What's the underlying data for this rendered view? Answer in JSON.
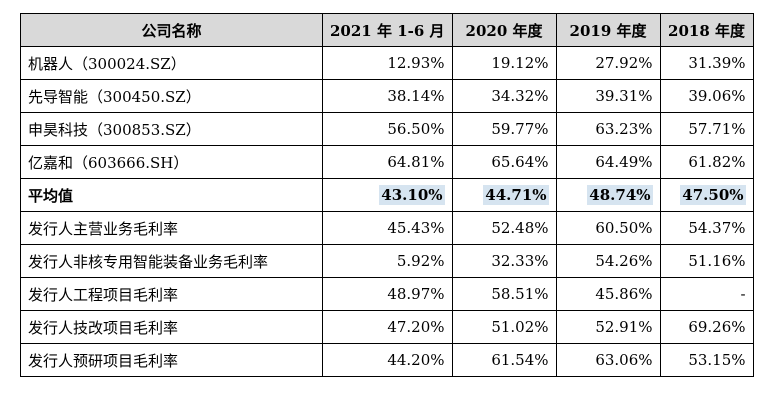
{
  "table": {
    "headers": [
      "公司名称",
      "2021 年 1-6 月",
      "2020 年度",
      "2019 年度",
      "2018 年度"
    ],
    "rows": [
      {
        "name": "机器人（300024.SZ）",
        "values": [
          "12.93%",
          "19.12%",
          "27.92%",
          "31.39%"
        ]
      },
      {
        "name": "先导智能（300450.SZ）",
        "values": [
          "38.14%",
          "34.32%",
          "39.31%",
          "39.06%"
        ]
      },
      {
        "name": "申昊科技（300853.SZ）",
        "values": [
          "56.50%",
          "59.77%",
          "63.23%",
          "57.71%"
        ]
      },
      {
        "name": "亿嘉和（603666.SH）",
        "values": [
          "64.81%",
          "65.64%",
          "64.49%",
          "61.82%"
        ]
      },
      {
        "name": "平均值",
        "values": [
          "43.10%",
          "44.71%",
          "48.74%",
          "47.50%"
        ]
      },
      {
        "name": "发行人主营业务毛利率",
        "values": [
          "45.43%",
          "52.48%",
          "60.50%",
          "54.37%"
        ]
      },
      {
        "name": "发行人非核专用智能装备业务毛利率",
        "values": [
          "5.92%",
          "32.33%",
          "54.26%",
          "51.16%"
        ]
      },
      {
        "name": "发行人工程项目毛利率",
        "values": [
          "48.97%",
          "58.51%",
          "45.86%",
          "-"
        ]
      },
      {
        "name": "发行人技改项目毛利率",
        "values": [
          "47.20%",
          "51.02%",
          "52.91%",
          "69.26%"
        ]
      },
      {
        "name": "发行人预研项目毛利率",
        "values": [
          "44.20%",
          "61.54%",
          "63.06%",
          "53.15%"
        ]
      }
    ]
  }
}
